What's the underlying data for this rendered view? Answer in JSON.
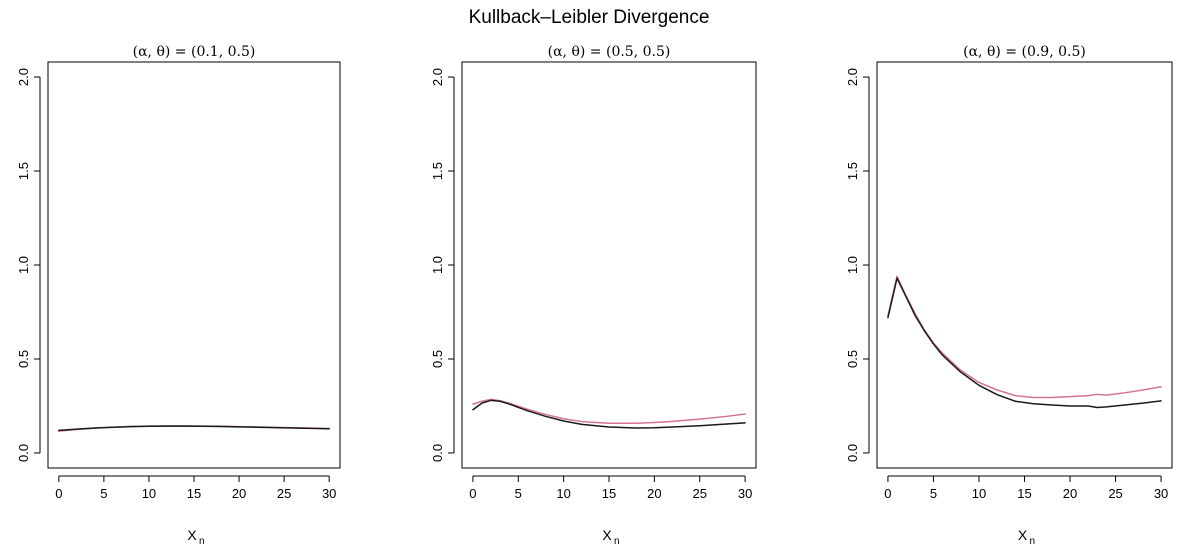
{
  "figure": {
    "title": "Kullback–Leibler Divergence"
  },
  "chart_data": [
    {
      "type": "line",
      "title": "(α, θ) = (0.1, 0.5)",
      "xlabel": "X",
      "xlabel_subscript": "n",
      "ylabel": "",
      "xlim": [
        0,
        30
      ],
      "ylim": [
        0,
        2
      ],
      "x_ticks": [
        "0",
        "5",
        "10",
        "15",
        "20",
        "25",
        "30"
      ],
      "y_ticks": [
        "0.0",
        "0.5",
        "1.0",
        "1.5",
        "2.0"
      ],
      "grid": false,
      "series": [
        {
          "color": "#1a1a1a",
          "x": [
            0,
            2,
            4,
            6,
            8,
            10,
            12,
            14,
            16,
            18,
            20,
            22,
            24,
            26,
            28,
            30
          ],
          "y": [
            0.12,
            0.127,
            0.133,
            0.137,
            0.14,
            0.142,
            0.143,
            0.143,
            0.142,
            0.141,
            0.139,
            0.137,
            0.135,
            0.133,
            0.131,
            0.129
          ]
        },
        {
          "color": "#d4748f",
          "x": [
            0,
            2,
            4,
            6,
            8,
            10,
            12,
            14,
            16,
            18,
            20,
            22,
            24,
            26,
            28,
            30
          ],
          "y": [
            0.116,
            0.125,
            0.132,
            0.137,
            0.141,
            0.143,
            0.144,
            0.144,
            0.143,
            0.142,
            0.14,
            0.138,
            0.136,
            0.134,
            0.132,
            0.13
          ]
        }
      ]
    },
    {
      "type": "line",
      "title": "(α, θ) = (0.5, 0.5)",
      "xlabel": "X",
      "xlabel_subscript": "n",
      "ylabel": "",
      "xlim": [
        0,
        30
      ],
      "ylim": [
        0,
        2
      ],
      "x_ticks": [
        "0",
        "5",
        "10",
        "15",
        "20",
        "25",
        "30"
      ],
      "y_ticks": [
        "0.0",
        "0.5",
        "1.0",
        "1.5",
        "2.0"
      ],
      "grid": false,
      "series": [
        {
          "color": "#1a1a1a",
          "x": [
            0,
            1,
            2,
            3,
            4,
            6,
            8,
            10,
            12,
            15,
            18,
            20,
            22,
            25,
            28,
            30
          ],
          "y": [
            0.23,
            0.265,
            0.28,
            0.275,
            0.26,
            0.225,
            0.195,
            0.17,
            0.152,
            0.138,
            0.133,
            0.134,
            0.138,
            0.145,
            0.154,
            0.16
          ]
        },
        {
          "color": "#d4748f",
          "x": [
            0,
            1,
            2,
            3,
            4,
            6,
            8,
            10,
            12,
            15,
            18,
            20,
            22,
            25,
            28,
            30
          ],
          "y": [
            0.26,
            0.275,
            0.285,
            0.278,
            0.265,
            0.233,
            0.205,
            0.182,
            0.167,
            0.158,
            0.158,
            0.162,
            0.168,
            0.18,
            0.195,
            0.207
          ]
        }
      ]
    },
    {
      "type": "line",
      "title": "(α, θ) = (0.9, 0.5)",
      "xlabel": "X",
      "xlabel_subscript": "n",
      "ylabel": "",
      "xlim": [
        0,
        30
      ],
      "ylim": [
        0,
        2
      ],
      "x_ticks": [
        "0",
        "5",
        "10",
        "15",
        "20",
        "25",
        "30"
      ],
      "y_ticks": [
        "0.0",
        "0.5",
        "1.0",
        "1.5",
        "2.0"
      ],
      "grid": false,
      "series": [
        {
          "color": "#1a1a1a",
          "x": [
            0,
            1,
            2,
            3,
            4,
            5,
            6,
            8,
            10,
            12,
            14,
            16,
            18,
            20,
            22,
            23,
            24,
            26,
            28,
            30
          ],
          "y": [
            0.72,
            0.93,
            0.83,
            0.73,
            0.65,
            0.58,
            0.52,
            0.43,
            0.36,
            0.31,
            0.275,
            0.262,
            0.255,
            0.25,
            0.25,
            0.242,
            0.245,
            0.255,
            0.265,
            0.277
          ]
        },
        {
          "color": "#d4748f",
          "x": [
            0,
            1,
            2,
            3,
            4,
            5,
            6,
            8,
            10,
            12,
            14,
            16,
            18,
            20,
            22,
            23,
            24,
            26,
            28,
            30
          ],
          "y": [
            0.73,
            0.94,
            0.835,
            0.74,
            0.655,
            0.585,
            0.53,
            0.44,
            0.375,
            0.335,
            0.305,
            0.295,
            0.295,
            0.3,
            0.305,
            0.312,
            0.308,
            0.32,
            0.335,
            0.352
          ]
        }
      ]
    }
  ]
}
